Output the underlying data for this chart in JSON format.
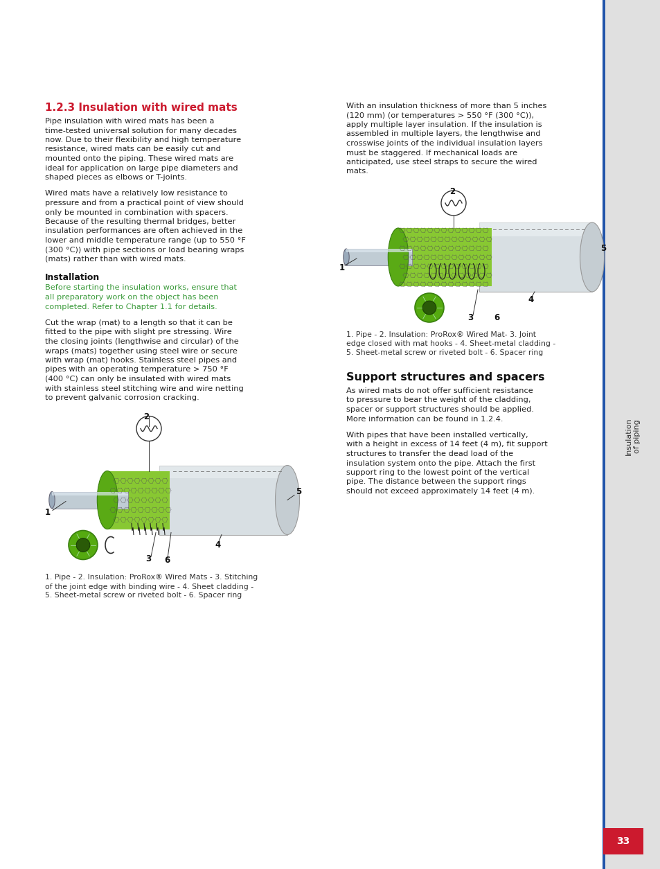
{
  "page_bg": "#ffffff",
  "sidebar_bg": "#e0e0e0",
  "sidebar_text": "Insulation\nof piping",
  "page_number": "33",
  "page_number_bg": "#cc1a2e",
  "page_number_color": "#ffffff",
  "blue_line_color": "#2255aa",
  "section_title": "1.2.3 Insulation with wired mats",
  "section_title_color": "#cc1a2e",
  "para1_lines": [
    "Pipe insulation with wired mats has been a",
    "time-tested universal solution for many decades",
    "now. Due to their flexibility and high temperature",
    "resistance, wired mats can be easily cut and",
    "mounted onto the piping. These wired mats are",
    "ideal for application on large pipe diameters and",
    "shaped pieces as elbows or T-joints."
  ],
  "para2_lines": [
    "Wired mats have a relatively low resistance to",
    "pressure and from a practical point of view should",
    "only be mounted in combination with spacers.",
    "Because of the resulting thermal bridges, better",
    "insulation performances are often achieved in the",
    "lower and middle temperature range (up to 550 °F",
    "(300 °C)) with pipe sections or load bearing wraps",
    "(mats) rather than with wired mats."
  ],
  "installation_title": "Installation",
  "green_lines": [
    "Before starting the insulation works, ensure that",
    "all preparatory work on the object has been",
    "completed. Refer to Chapter 1.1 for details."
  ],
  "green_color": "#3a9a3a",
  "para3_lines": [
    "Cut the wrap (mat) to a length so that it can be",
    "fitted to the pipe with slight pre stressing. Wire",
    "the closing joints (lengthwise and circular) of the",
    "wraps (mats) together using steel wire or secure",
    "with wrap (mat) hooks. Stainless steel pipes and",
    "pipes with an operating temperature > 750 °F",
    "(400 °C) can only be insulated with wired mats",
    "with stainless steel stitching wire and wire netting",
    "to prevent galvanic corrosion cracking."
  ],
  "caption1_lines": [
    "1. Pipe - 2. Insulation: ProRox® Wired Mats - 3. Stitching",
    "of the joint edge with binding wire - 4. Sheet cladding -",
    "5. Sheet-metal screw or riveted bolt - 6. Spacer ring"
  ],
  "right_para1_lines": [
    "With an insulation thickness of more than 5 inches",
    "(120 mm) (or temperatures > 550 °F (300 °C)),",
    "apply multiple layer insulation. If the insulation is",
    "assembled in multiple layers, the lengthwise and",
    "crosswise joints of the individual insulation layers",
    "must be staggered. If mechanical loads are",
    "anticipated, use steel straps to secure the wired",
    "mats."
  ],
  "caption2_lines": [
    "1. Pipe - 2. Insulation: ProRox® Wired Mat- 3. Joint",
    "edge closed with mat hooks - 4. Sheet-metal cladding -",
    "5. Sheet-metal screw or riveted bolt - 6. Spacer ring"
  ],
  "support_title": "Support structures and spacers",
  "support_para1_lines": [
    "As wired mats do not offer sufficient resistance",
    "to pressure to bear the weight of the cladding,",
    "spacer or support structures should be applied.",
    "More information can be found in 1.2.4."
  ],
  "support_para2_lines": [
    "With pipes that have been installed vertically,",
    "with a height in excess of 14 feet (4 m), fit support",
    "structures to transfer the dead load of the",
    "insulation system onto the pipe. Attach the first",
    "support ring to the lowest point of the vertical",
    "pipe. The distance between the support rings",
    "should not exceed approximately 14 feet (4 m)."
  ],
  "body_fs": 8.2,
  "title_fs": 11.0,
  "support_title_fs": 11.5,
  "caption_fs": 7.8,
  "label_fs": 8.5,
  "install_fs": 9.0
}
